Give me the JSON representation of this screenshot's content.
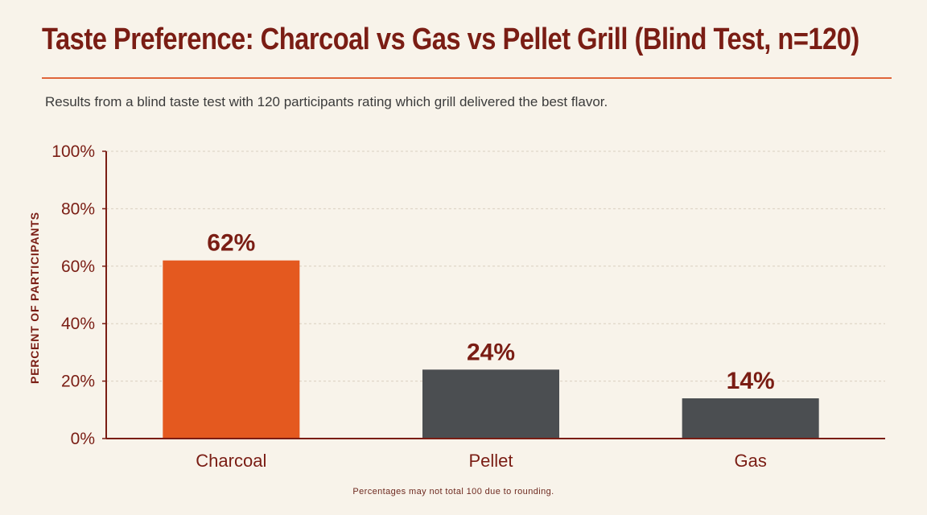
{
  "header": {
    "title": "Taste Preference: Charcoal vs Gas vs Pellet Grill (Blind Test, n=120)",
    "subtitle": "Results from a blind taste test with 120 participants rating which grill delivered the best flavor."
  },
  "footnote": "Percentages may not total 100 due to rounding.",
  "colors": {
    "title": "#7a1d14",
    "accent_rule": "#e0653a",
    "highlight_bar": "#e4591f",
    "bar": "#4b4e51",
    "background": "#f8f3ea"
  },
  "chart_data": {
    "type": "bar",
    "categories": [
      "Charcoal",
      "Pellet",
      "Gas"
    ],
    "values": [
      62,
      24,
      14
    ],
    "value_labels": [
      "62%",
      "24%",
      "14%"
    ],
    "bar_colors": [
      "#e4591f",
      "#4b4e51",
      "#4b4e51"
    ],
    "ylabel": "PERCENT OF PARTICIPANTS",
    "xlabel": "",
    "ylim": [
      0,
      100
    ],
    "yticks": [
      0,
      20,
      40,
      60,
      80,
      100
    ],
    "ytick_labels": [
      "0%",
      "20%",
      "40%",
      "60%",
      "80%",
      "100%"
    ],
    "grid": true
  }
}
